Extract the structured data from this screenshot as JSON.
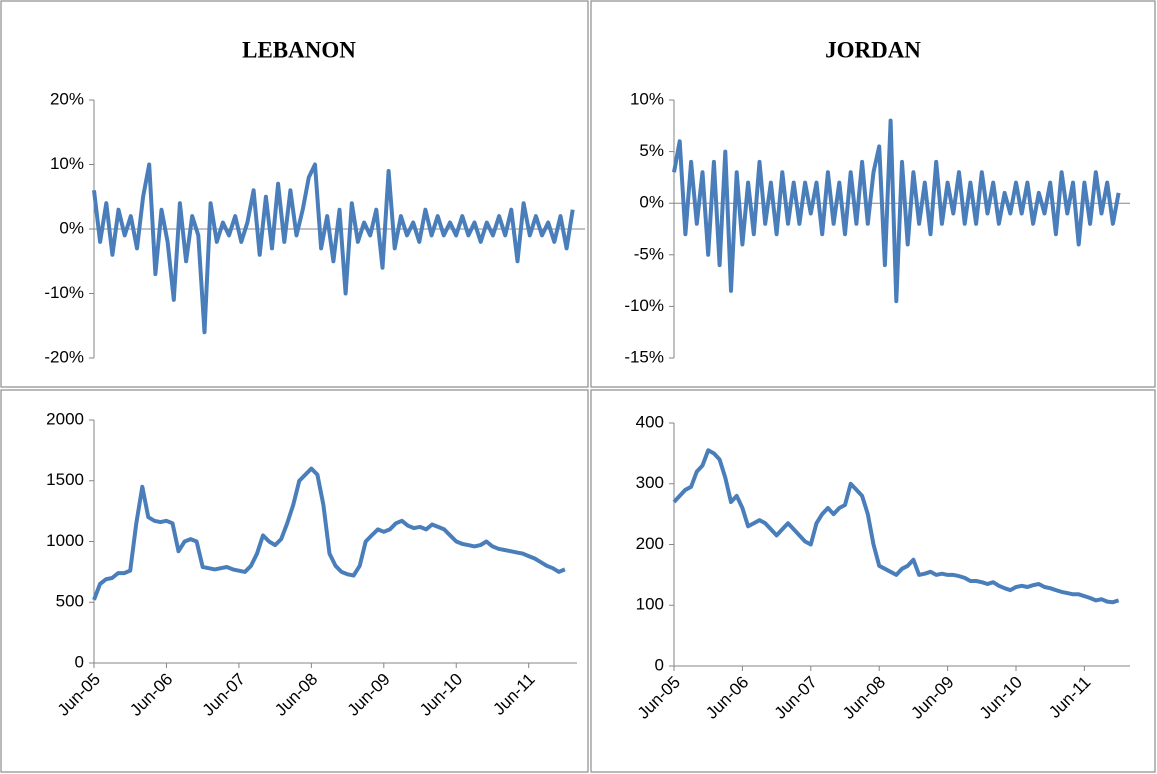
{
  "chart_data": [
    {
      "type": "line",
      "title": "LEBANON",
      "x": [
        "2005-06",
        "2005-07",
        "2005-08",
        "2005-09",
        "2005-10",
        "2005-11",
        "2005-12",
        "2006-01",
        "2006-02",
        "2006-03",
        "2006-04",
        "2006-05",
        "2006-06",
        "2006-07",
        "2006-08",
        "2006-09",
        "2006-10",
        "2006-11",
        "2006-12",
        "2007-01",
        "2007-02",
        "2007-03",
        "2007-04",
        "2007-05",
        "2007-06",
        "2007-07",
        "2007-08",
        "2007-09",
        "2007-10",
        "2007-11",
        "2007-12",
        "2008-01",
        "2008-02",
        "2008-03",
        "2008-04",
        "2008-05",
        "2008-06",
        "2008-07",
        "2008-08",
        "2008-09",
        "2008-10",
        "2008-11",
        "2008-12",
        "2009-01",
        "2009-02",
        "2009-03",
        "2009-04",
        "2009-05",
        "2009-06",
        "2009-07",
        "2009-08",
        "2009-09",
        "2009-10",
        "2009-11",
        "2009-12",
        "2010-01",
        "2010-02",
        "2010-03",
        "2010-04",
        "2010-05",
        "2010-06",
        "2010-07",
        "2010-08",
        "2010-09",
        "2010-10",
        "2010-11",
        "2010-12",
        "2011-01",
        "2011-02",
        "2011-03",
        "2011-04",
        "2011-05",
        "2011-06",
        "2011-07",
        "2011-08",
        "2011-09",
        "2011-10",
        "2011-11",
        "2011-12"
      ],
      "series": [
        {
          "color": "#4a7ebb",
          "values": [
            6,
            -2,
            4,
            -4,
            3,
            -1,
            2,
            -3,
            5,
            10,
            -7,
            3,
            -2,
            -11,
            4,
            -5,
            2,
            -1,
            -16,
            4,
            -2,
            1,
            -1,
            2,
            -2,
            1,
            6,
            -4,
            5,
            -3,
            7,
            -2,
            6,
            -1,
            3,
            8,
            10,
            -3,
            2,
            -5,
            3,
            -10,
            4,
            -2,
            1,
            -1,
            3,
            -6,
            9,
            -3,
            2,
            -1,
            1,
            -2,
            3,
            -1,
            2,
            -1,
            1,
            -1,
            2,
            -1,
            1,
            -2,
            1,
            -1,
            2,
            -1,
            3,
            -5,
            4,
            -1,
            2,
            -1,
            1,
            -2,
            2,
            -3,
            3
          ]
        }
      ],
      "xlim": [
        "2005-06",
        "2012-02"
      ],
      "ylim": [
        -20,
        20
      ],
      "yticks": [
        {
          "value": -20,
          "label": "-20%"
        },
        {
          "value": -10,
          "label": "-10%"
        },
        {
          "value": 0,
          "label": "0%"
        },
        {
          "value": 10,
          "label": "10%"
        },
        {
          "value": 20,
          "label": "20%"
        }
      ]
    },
    {
      "type": "line",
      "title": "JORDAN",
      "x": [
        "2005-06",
        "2005-07",
        "2005-08",
        "2005-09",
        "2005-10",
        "2005-11",
        "2005-12",
        "2006-01",
        "2006-02",
        "2006-03",
        "2006-04",
        "2006-05",
        "2006-06",
        "2006-07",
        "2006-08",
        "2006-09",
        "2006-10",
        "2006-11",
        "2006-12",
        "2007-01",
        "2007-02",
        "2007-03",
        "2007-04",
        "2007-05",
        "2007-06",
        "2007-07",
        "2007-08",
        "2007-09",
        "2007-10",
        "2007-11",
        "2007-12",
        "2008-01",
        "2008-02",
        "2008-03",
        "2008-04",
        "2008-05",
        "2008-06",
        "2008-07",
        "2008-08",
        "2008-09",
        "2008-10",
        "2008-11",
        "2008-12",
        "2009-01",
        "2009-02",
        "2009-03",
        "2009-04",
        "2009-05",
        "2009-06",
        "2009-07",
        "2009-08",
        "2009-09",
        "2009-10",
        "2009-11",
        "2009-12",
        "2010-01",
        "2010-02",
        "2010-03",
        "2010-04",
        "2010-05",
        "2010-06",
        "2010-07",
        "2010-08",
        "2010-09",
        "2010-10",
        "2010-11",
        "2010-12",
        "2011-01",
        "2011-02",
        "2011-03",
        "2011-04",
        "2011-05",
        "2011-06",
        "2011-07",
        "2011-08",
        "2011-09",
        "2011-10",
        "2011-11",
        "2011-12"
      ],
      "series": [
        {
          "color": "#4a7ebb",
          "values": [
            3,
            6,
            -3,
            4,
            -2,
            3,
            -5,
            4,
            -6,
            5,
            -8.5,
            3,
            -4,
            2,
            -3,
            4,
            -2,
            2,
            -3,
            3,
            -2,
            2,
            -2,
            2,
            -1,
            2,
            -3,
            3,
            -2,
            2,
            -3,
            3,
            -2,
            4,
            -2,
            3,
            5.5,
            -6,
            8,
            -9.5,
            4,
            -4,
            3,
            -2,
            2,
            -3,
            4,
            -2,
            2,
            -1,
            3,
            -2,
            2,
            -2,
            3,
            -1,
            2,
            -2,
            1,
            -1,
            2,
            -1,
            2,
            -2,
            1,
            -1,
            2,
            -3,
            3,
            -1,
            2,
            -4,
            2,
            -2,
            3,
            -1,
            2,
            -2,
            1
          ]
        }
      ],
      "xlim": [
        "2005-06",
        "2012-02"
      ],
      "ylim": [
        -15,
        10
      ],
      "yticks": [
        {
          "value": -15,
          "label": "-15%"
        },
        {
          "value": -10,
          "label": "-10%"
        },
        {
          "value": -5,
          "label": "-5%"
        },
        {
          "value": 0,
          "label": "0%"
        },
        {
          "value": 5,
          "label": "5%"
        },
        {
          "value": 10,
          "label": "10%"
        }
      ]
    },
    {
      "type": "line",
      "x": [
        "2005-06",
        "2005-07",
        "2005-08",
        "2005-09",
        "2005-10",
        "2005-11",
        "2005-12",
        "2006-01",
        "2006-02",
        "2006-03",
        "2006-04",
        "2006-05",
        "2006-06",
        "2006-07",
        "2006-08",
        "2006-09",
        "2006-10",
        "2006-11",
        "2006-12",
        "2007-01",
        "2007-02",
        "2007-03",
        "2007-04",
        "2007-05",
        "2007-06",
        "2007-07",
        "2007-08",
        "2007-09",
        "2007-10",
        "2007-11",
        "2007-12",
        "2008-01",
        "2008-02",
        "2008-03",
        "2008-04",
        "2008-05",
        "2008-06",
        "2008-07",
        "2008-08",
        "2008-09",
        "2008-10",
        "2008-11",
        "2008-12",
        "2009-01",
        "2009-02",
        "2009-03",
        "2009-04",
        "2009-05",
        "2009-06",
        "2009-07",
        "2009-08",
        "2009-09",
        "2009-10",
        "2009-11",
        "2009-12",
        "2010-01",
        "2010-02",
        "2010-03",
        "2010-04",
        "2010-05",
        "2010-06",
        "2010-07",
        "2010-08",
        "2010-09",
        "2010-10",
        "2010-11",
        "2010-12",
        "2011-01",
        "2011-02",
        "2011-03",
        "2011-04",
        "2011-05",
        "2011-06",
        "2011-07",
        "2011-08",
        "2011-09",
        "2011-10",
        "2011-11",
        "2011-12"
      ],
      "series": [
        {
          "color": "#4a7ebb",
          "values": [
            520,
            650,
            690,
            700,
            740,
            740,
            760,
            1150,
            1450,
            1200,
            1170,
            1160,
            1170,
            1150,
            920,
            1000,
            1020,
            1000,
            790,
            780,
            770,
            780,
            790,
            770,
            760,
            750,
            800,
            900,
            1050,
            1000,
            970,
            1020,
            1150,
            1300,
            1500,
            1550,
            1600,
            1550,
            1300,
            900,
            800,
            750,
            730,
            720,
            800,
            1000,
            1050,
            1100,
            1080,
            1100,
            1150,
            1170,
            1130,
            1110,
            1120,
            1100,
            1140,
            1120,
            1100,
            1050,
            1000,
            980,
            970,
            960,
            970,
            1000,
            960,
            940,
            930,
            920,
            910,
            900,
            880,
            860,
            830,
            800,
            780,
            750,
            770
          ]
        }
      ],
      "xlim": [
        "2005-06",
        "2012-02"
      ],
      "xticks": [
        {
          "value": "2005-06",
          "label": "Jun-05"
        },
        {
          "value": "2006-06",
          "label": "Jun-06"
        },
        {
          "value": "2007-06",
          "label": "Jun-07"
        },
        {
          "value": "2008-06",
          "label": "Jun-08"
        },
        {
          "value": "2009-06",
          "label": "Jun-09"
        },
        {
          "value": "2010-06",
          "label": "Jun-10"
        },
        {
          "value": "2011-06",
          "label": "Jun-11"
        }
      ],
      "ylim": [
        0,
        2000
      ],
      "yticks": [
        0,
        500,
        1000,
        1500,
        2000
      ]
    },
    {
      "type": "line",
      "x": [
        "2005-06",
        "2005-07",
        "2005-08",
        "2005-09",
        "2005-10",
        "2005-11",
        "2005-12",
        "2006-01",
        "2006-02",
        "2006-03",
        "2006-04",
        "2006-05",
        "2006-06",
        "2006-07",
        "2006-08",
        "2006-09",
        "2006-10",
        "2006-11",
        "2006-12",
        "2007-01",
        "2007-02",
        "2007-03",
        "2007-04",
        "2007-05",
        "2007-06",
        "2007-07",
        "2007-08",
        "2007-09",
        "2007-10",
        "2007-11",
        "2007-12",
        "2008-01",
        "2008-02",
        "2008-03",
        "2008-04",
        "2008-05",
        "2008-06",
        "2008-07",
        "2008-08",
        "2008-09",
        "2008-10",
        "2008-11",
        "2008-12",
        "2009-01",
        "2009-02",
        "2009-03",
        "2009-04",
        "2009-05",
        "2009-06",
        "2009-07",
        "2009-08",
        "2009-09",
        "2009-10",
        "2009-11",
        "2009-12",
        "2010-01",
        "2010-02",
        "2010-03",
        "2010-04",
        "2010-05",
        "2010-06",
        "2010-07",
        "2010-08",
        "2010-09",
        "2010-10",
        "2010-11",
        "2010-12",
        "2011-01",
        "2011-02",
        "2011-03",
        "2011-04",
        "2011-05",
        "2011-06",
        "2011-07",
        "2011-08",
        "2011-09",
        "2011-10",
        "2011-11",
        "2011-12"
      ],
      "series": [
        {
          "color": "#4a7ebb",
          "values": [
            270,
            280,
            290,
            295,
            320,
            330,
            355,
            350,
            340,
            310,
            270,
            280,
            260,
            230,
            235,
            240,
            235,
            225,
            215,
            225,
            235,
            225,
            215,
            205,
            200,
            235,
            250,
            260,
            250,
            260,
            265,
            300,
            290,
            280,
            250,
            200,
            165,
            160,
            155,
            150,
            160,
            165,
            175,
            150,
            152,
            155,
            150,
            152,
            150,
            150,
            148,
            145,
            140,
            140,
            138,
            135,
            138,
            132,
            128,
            125,
            130,
            132,
            130,
            133,
            135,
            130,
            128,
            125,
            122,
            120,
            118,
            118,
            115,
            112,
            108,
            110,
            106,
            105,
            108
          ]
        }
      ],
      "xlim": [
        "2005-06",
        "2012-02"
      ],
      "xticks": [
        {
          "value": "2005-06",
          "label": "Jun-05"
        },
        {
          "value": "2006-06",
          "label": "Jun-06"
        },
        {
          "value": "2007-06",
          "label": "Jun-07"
        },
        {
          "value": "2008-06",
          "label": "Jun-08"
        },
        {
          "value": "2009-06",
          "label": "Jun-09"
        },
        {
          "value": "2010-06",
          "label": "Jun-10"
        },
        {
          "value": "2011-06",
          "label": "Jun-11"
        }
      ],
      "ylim": [
        0,
        400
      ],
      "yticks": [
        0,
        100,
        200,
        300,
        400
      ]
    }
  ]
}
